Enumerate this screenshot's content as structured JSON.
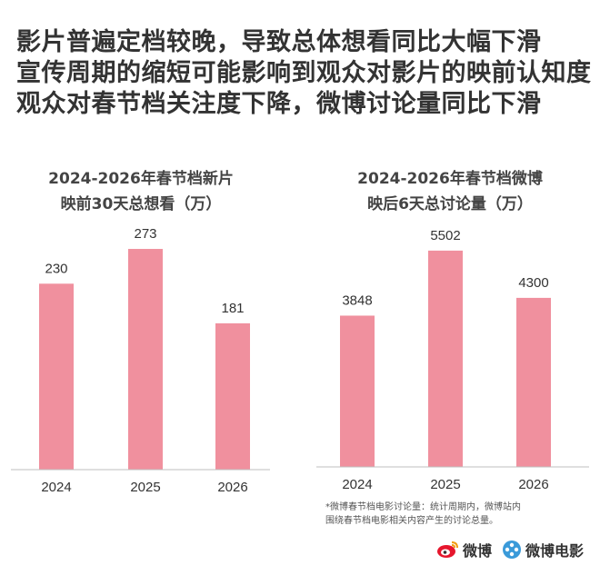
{
  "headline": [
    "影片普遍定档较晚，导致总体想看同比大幅下滑",
    "宣传周期的缩短可能影响到观众对影片的映前认知度",
    "观众对春节档关注度下降，微博讨论量同比下滑"
  ],
  "chart_data": [
    {
      "type": "bar",
      "title": "2024-2026年春节档新片",
      "subtitle": "映前30天总想看（万）",
      "categories": [
        "2024",
        "2025",
        "2026"
      ],
      "values": [
        230,
        273,
        181
      ],
      "ylim": [
        0,
        300
      ],
      "grid": false,
      "color": "#f0909e"
    },
    {
      "type": "bar",
      "title": "2024-2026年春节档微博",
      "subtitle": "映后6天总讨论量（万）",
      "categories": [
        "2024",
        "2025",
        "2026"
      ],
      "values": [
        3848,
        5502,
        4300
      ],
      "ylim": [
        0,
        6100
      ],
      "grid": false,
      "color": "#f0909e"
    }
  ],
  "footnote": {
    "line1": "*微博春节档电影讨论量：统计周期内，微博站内",
    "line2": "围绕春节档电影相关内容产生的讨论总量。"
  },
  "logos": {
    "weibo": "微博",
    "weibo_movie": "微博电影"
  },
  "colors": {
    "bar": "#f0909e",
    "axis": "#bfbfbf",
    "weibo_red": "#e6162d",
    "weibo_movie_blue": "#3a9ad9"
  },
  "icons": [
    "weibo-logo-icon",
    "weibo-movie-logo-icon"
  ]
}
